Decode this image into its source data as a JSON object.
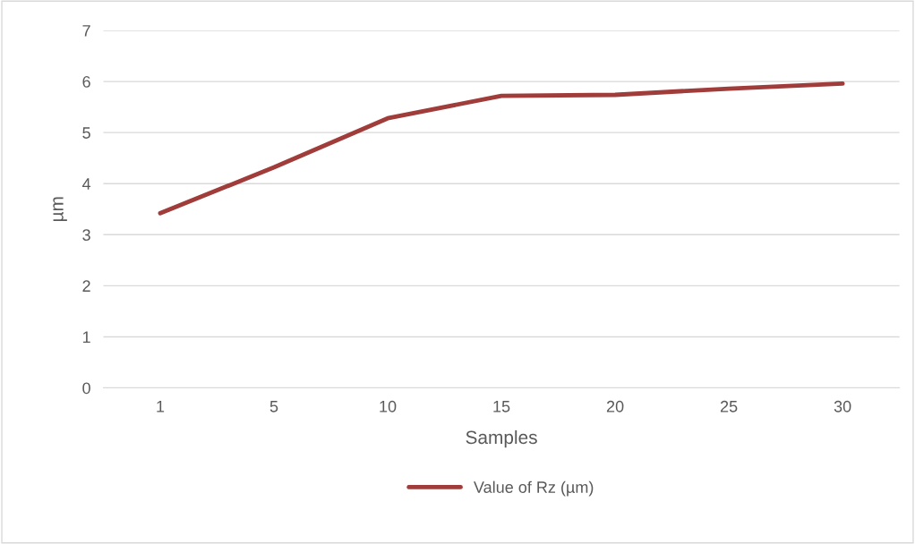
{
  "chart_data": {
    "type": "line",
    "xlabel": "Samples",
    "ylabel": "µm",
    "categories": [
      "1",
      "5",
      "10",
      "15",
      "20",
      "25",
      "30"
    ],
    "series": [
      {
        "name": "Value of Rz (µm)",
        "color": "#a03c3a",
        "values": [
          3.42,
          4.32,
          5.28,
          5.72,
          5.74,
          5.86,
          5.96
        ]
      }
    ],
    "ylim": [
      0,
      7
    ],
    "yticks": [
      0,
      1,
      2,
      3,
      4,
      5,
      6,
      7
    ],
    "grid": "y",
    "legend": "bottom"
  }
}
